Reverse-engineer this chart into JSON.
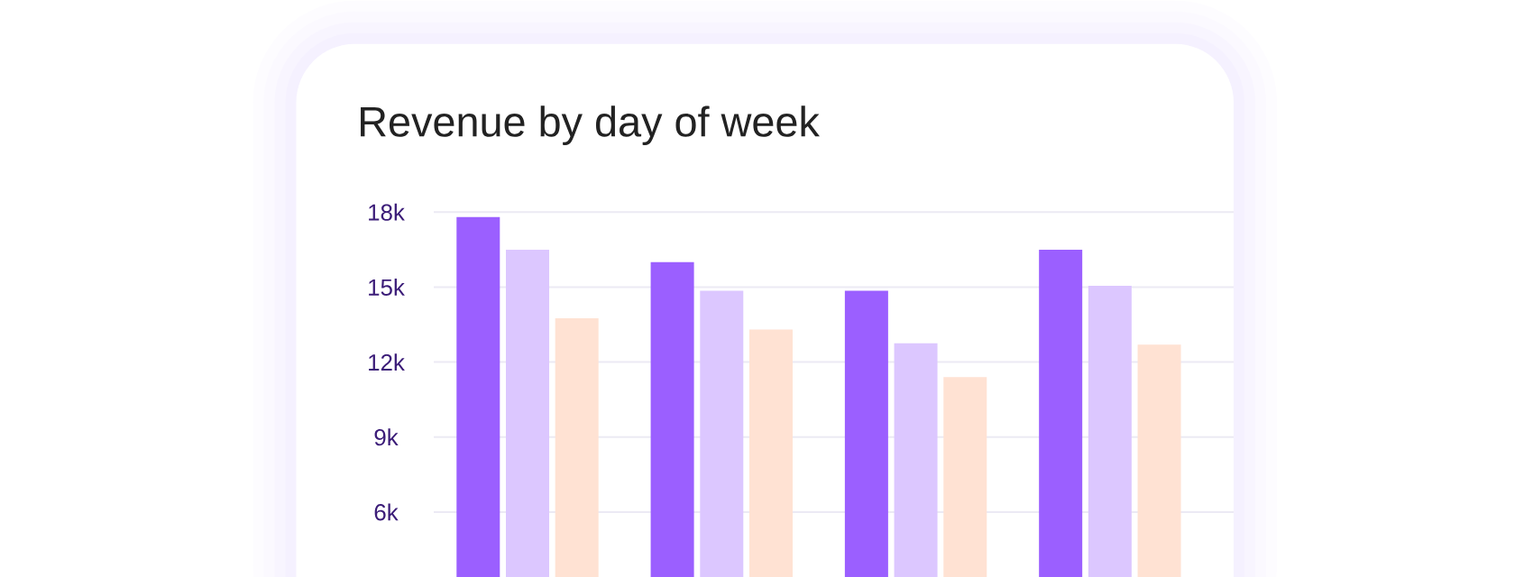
{
  "chart_data": {
    "type": "bar",
    "title": "Revenue by day of week",
    "categories": [
      null,
      null,
      null,
      null
    ],
    "series": [
      {
        "color": "#9b5fff",
        "values": [
          17800,
          16000,
          14850,
          16500
        ]
      },
      {
        "color": "#dcc7ff",
        "values": [
          16500,
          14850,
          12750,
          15050
        ]
      },
      {
        "color": "#ffe2d3",
        "values": [
          13750,
          13300,
          11400,
          12700
        ]
      }
    ],
    "ylim": [
      3400,
      18000
    ],
    "yticks": [
      {
        "value": 6000,
        "label": "6k"
      },
      {
        "value": 9000,
        "label": "9k"
      },
      {
        "value": 12000,
        "label": "12k"
      },
      {
        "value": 15000,
        "label": "15k"
      },
      {
        "value": 18000,
        "label": "18k"
      }
    ],
    "grid": "y"
  }
}
